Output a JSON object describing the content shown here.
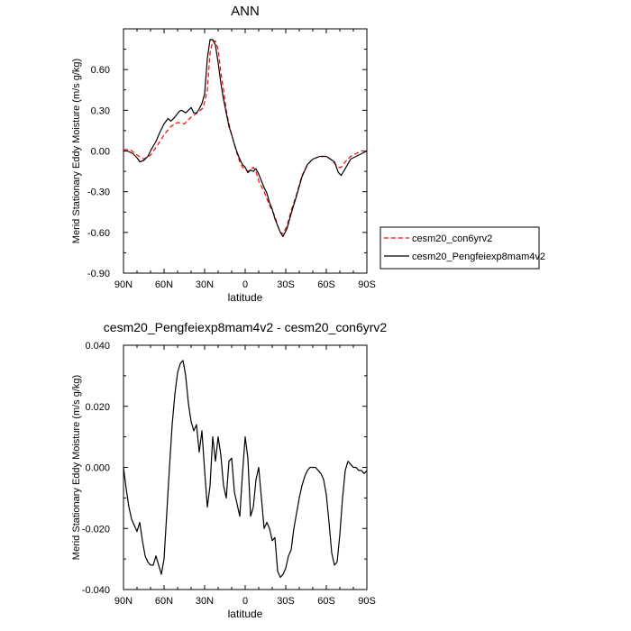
{
  "chart_data": [
    {
      "type": "line",
      "title": "ANN",
      "xlabel": "latitude",
      "ylabel": "Merid Stationary Eddy Moisture (m/s g/kg)",
      "xlim": [
        90,
        -90
      ],
      "ylim": [
        -0.9,
        0.9
      ],
      "xticks": [
        90,
        60,
        30,
        0,
        -30,
        -60,
        -90
      ],
      "xticklabels": [
        "90N",
        "60N",
        "30N",
        "0",
        "30S",
        "60S",
        "90S"
      ],
      "yticks": [
        -0.9,
        -0.6,
        -0.3,
        0.0,
        0.3,
        0.6
      ],
      "yticklabels": [
        "-0.90",
        "-0.60",
        "-0.30",
        "0.00",
        "0.30",
        "0.60"
      ],
      "grid": false,
      "legend_position": "right",
      "series": [
        {
          "name": "cesm20_con6yrv2",
          "color": "#ff0000",
          "dash": "dashed",
          "x": [
            90,
            85,
            80,
            75,
            70,
            65,
            60,
            55,
            50,
            45,
            40,
            37,
            34,
            31,
            28,
            26,
            24,
            22,
            20,
            18,
            16,
            14,
            12,
            10,
            8,
            6,
            4,
            2,
            0,
            -2,
            -4,
            -6,
            -8,
            -10,
            -14,
            -18,
            -22,
            -24,
            -26,
            -28,
            -31,
            -34,
            -38,
            -42,
            -46,
            -50,
            -55,
            -60,
            -63,
            -66,
            -69,
            -71,
            -74,
            -78,
            -82,
            -86,
            -90
          ],
          "y": [
            0.01,
            0.01,
            -0.03,
            -0.06,
            -0.03,
            0.04,
            0.12,
            0.18,
            0.21,
            0.2,
            0.25,
            0.27,
            0.29,
            0.32,
            0.45,
            0.72,
            0.81,
            0.81,
            0.75,
            0.58,
            0.45,
            0.3,
            0.2,
            0.12,
            0.05,
            -0.02,
            -0.08,
            -0.12,
            -0.13,
            -0.15,
            -0.14,
            -0.12,
            -0.15,
            -0.22,
            -0.3,
            -0.4,
            -0.48,
            -0.55,
            -0.6,
            -0.61,
            -0.55,
            -0.44,
            -0.32,
            -0.18,
            -0.1,
            -0.06,
            -0.04,
            -0.04,
            -0.06,
            -0.09,
            -0.12,
            -0.12,
            -0.08,
            -0.04,
            -0.02,
            0.0,
            0.0
          ]
        },
        {
          "name": "cesm20_Pengfeiexp8mam4v2",
          "color": "#000000",
          "dash": "solid",
          "x": [
            90,
            87,
            83,
            80,
            78,
            75,
            72,
            69,
            66,
            63,
            60,
            57,
            55,
            52,
            49,
            47,
            44,
            42,
            40,
            38,
            36,
            34,
            32,
            30,
            28,
            26,
            24,
            22,
            20,
            18,
            16,
            14,
            12,
            10,
            8,
            6,
            4,
            2,
            0,
            -2,
            -4,
            -6,
            -8,
            -10,
            -12,
            -14,
            -16,
            -18,
            -20,
            -22,
            -24,
            -26,
            -28,
            -31,
            -34,
            -38,
            -42,
            -46,
            -50,
            -55,
            -60,
            -63,
            -66,
            -69,
            -71,
            -74,
            -78,
            -82,
            -86,
            -90
          ],
          "y": [
            0.0,
            0.0,
            -0.02,
            -0.05,
            -0.08,
            -0.07,
            -0.04,
            0.02,
            0.07,
            0.14,
            0.2,
            0.24,
            0.22,
            0.25,
            0.29,
            0.3,
            0.28,
            0.3,
            0.32,
            0.28,
            0.28,
            0.31,
            0.35,
            0.42,
            0.68,
            0.82,
            0.82,
            0.78,
            0.65,
            0.5,
            0.38,
            0.28,
            0.18,
            0.12,
            0.05,
            -0.01,
            -0.06,
            -0.1,
            -0.12,
            -0.16,
            -0.14,
            -0.15,
            -0.13,
            -0.17,
            -0.22,
            -0.27,
            -0.31,
            -0.38,
            -0.43,
            -0.5,
            -0.55,
            -0.6,
            -0.63,
            -0.57,
            -0.46,
            -0.33,
            -0.19,
            -0.1,
            -0.06,
            -0.04,
            -0.04,
            -0.06,
            -0.08,
            -0.16,
            -0.18,
            -0.13,
            -0.06,
            -0.04,
            -0.02,
            0.0
          ]
        }
      ]
    },
    {
      "type": "line",
      "title": "cesm20_Pengfeiexp8mam4v2 - cesm20_con6yrv2",
      "xlabel": "latitude",
      "ylabel": "Merid Stationary Eddy Moisture (m/s g/kg)",
      "xlim": [
        90,
        -90
      ],
      "ylim": [
        -0.04,
        0.04
      ],
      "xticks": [
        90,
        60,
        30,
        0,
        -30,
        -60,
        -90
      ],
      "xticklabels": [
        "90N",
        "60N",
        "30N",
        "0",
        "30S",
        "60S",
        "90S"
      ],
      "yticks": [
        -0.04,
        -0.02,
        0.0,
        0.02,
        0.04
      ],
      "yticklabels": [
        "-0.040",
        "-0.020",
        "0.000",
        "0.020",
        "0.040"
      ],
      "grid": false,
      "series": [
        {
          "name": "",
          "color": "#000000",
          "dash": "solid",
          "x": [
            90,
            88,
            86,
            84,
            82,
            80,
            78,
            76,
            74,
            72,
            70,
            68,
            66,
            64,
            62,
            60,
            58,
            56,
            54,
            52,
            50,
            48,
            46,
            44,
            42,
            40,
            38,
            36,
            34,
            32,
            30,
            28,
            26,
            24,
            22,
            20,
            18,
            16,
            14,
            12,
            10,
            8,
            6,
            4,
            2,
            0,
            -2,
            -4,
            -6,
            -8,
            -10,
            -12,
            -14,
            -16,
            -18,
            -20,
            -22,
            -24,
            -26,
            -28,
            -30,
            -32,
            -34,
            -36,
            -38,
            -40,
            -42,
            -44,
            -46,
            -48,
            -50,
            -52,
            -54,
            -56,
            -58,
            -60,
            -62,
            -64,
            -66,
            -68,
            -70,
            -72,
            -74,
            -76,
            -78,
            -80,
            -82,
            -84,
            -86,
            -88,
            -90
          ],
          "y": [
            0.0,
            -0.007,
            -0.013,
            -0.017,
            -0.019,
            -0.021,
            -0.018,
            -0.024,
            -0.029,
            -0.031,
            -0.032,
            -0.032,
            -0.029,
            -0.032,
            -0.035,
            -0.03,
            -0.015,
            0.0,
            0.014,
            0.024,
            0.031,
            0.034,
            0.035,
            0.03,
            0.021,
            0.015,
            0.012,
            0.014,
            0.005,
            0.012,
            -0.001,
            -0.013,
            -0.006,
            0.01,
            0.002,
            0.01,
            0.004,
            -0.006,
            -0.01,
            0.002,
            0.003,
            -0.008,
            -0.012,
            -0.016,
            -0.002,
            0.01,
            0.003,
            -0.016,
            -0.013,
            -0.004,
            0.0,
            -0.01,
            -0.02,
            -0.018,
            -0.02,
            -0.024,
            -0.023,
            -0.034,
            -0.036,
            -0.035,
            -0.033,
            -0.029,
            -0.027,
            -0.02,
            -0.015,
            -0.01,
            -0.006,
            -0.003,
            -0.001,
            0.0,
            0.0,
            0.0,
            -0.001,
            -0.002,
            -0.004,
            -0.009,
            -0.018,
            -0.028,
            -0.032,
            -0.031,
            -0.022,
            -0.01,
            -0.001,
            0.002,
            0.001,
            0.0,
            0.0,
            -0.001,
            -0.001,
            -0.002,
            -0.001
          ]
        }
      ]
    }
  ]
}
